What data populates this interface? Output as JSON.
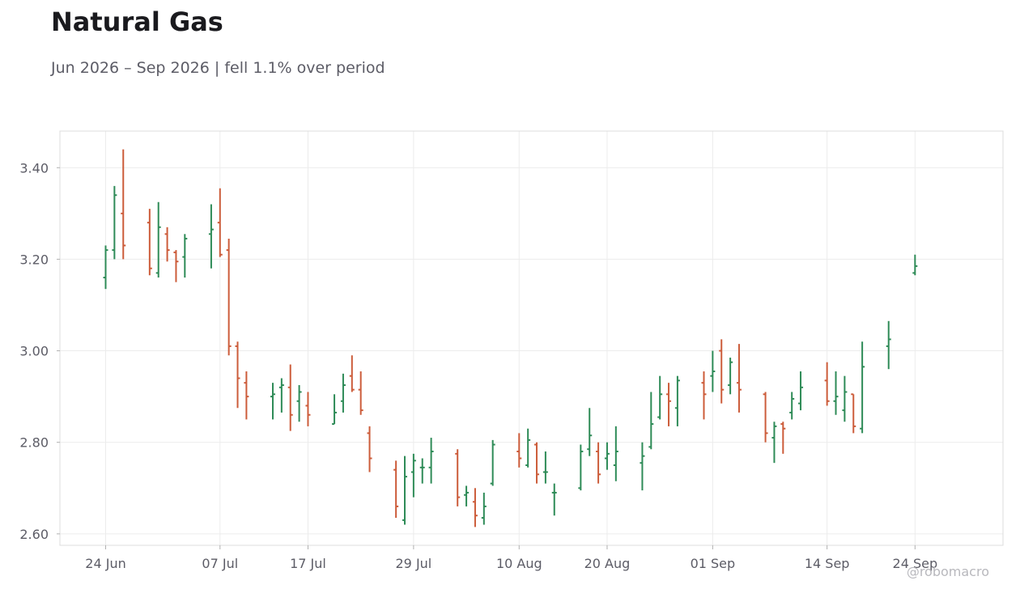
{
  "header": {
    "title": "Natural Gas",
    "subtitle": "Jun 2026 – Sep 2026 | fell 1.1% over period"
  },
  "watermark": "@robomacro",
  "colors": {
    "up": "#2e8b57",
    "down": "#cc5c3a",
    "grid": "#ececec",
    "frame": "#dcdcdc"
  },
  "chart_data": {
    "type": "ohlc",
    "title": "Natural Gas",
    "subtitle": "Jun 2026 – Sep 2026 | fell 1.1% over period",
    "x_range_days": [
      -5.2,
      102
    ],
    "ylim": [
      2.575,
      3.48
    ],
    "grid": true,
    "x_tick_labels": [
      "24 Jun",
      "07 Jul",
      "17 Jul",
      "29 Jul",
      "10 Aug",
      "20 Aug",
      "01 Sep",
      "14 Sep",
      "24 Sep"
    ],
    "x_tick_days": [
      0,
      13,
      23,
      35,
      47,
      57,
      69,
      82,
      92
    ],
    "y_ticks": [
      2.6,
      2.8,
      3.0,
      3.2,
      3.4
    ],
    "y_tick_labels": [
      "2.60",
      "2.80",
      "3.00",
      "3.20",
      "3.40"
    ],
    "bars": [
      {
        "date": "24 Jun",
        "o": 3.16,
        "h": 3.23,
        "l": 3.135,
        "c": 3.22
      },
      {
        "date": "25 Jun",
        "o": 3.22,
        "h": 3.36,
        "l": 3.2,
        "c": 3.34
      },
      {
        "date": "26 Jun",
        "o": 3.3,
        "h": 3.44,
        "l": 3.2,
        "c": 3.23
      },
      {
        "date": "29 Jun",
        "o": 3.28,
        "h": 3.31,
        "l": 3.165,
        "c": 3.18
      },
      {
        "date": "30 Jun",
        "o": 3.17,
        "h": 3.325,
        "l": 3.16,
        "c": 3.27
      },
      {
        "date": "01 Jul",
        "o": 3.255,
        "h": 3.27,
        "l": 3.195,
        "c": 3.22
      },
      {
        "date": "02 Jul",
        "o": 3.215,
        "h": 3.22,
        "l": 3.15,
        "c": 3.195
      },
      {
        "date": "03 Jul",
        "o": 3.205,
        "h": 3.255,
        "l": 3.16,
        "c": 3.245
      },
      {
        "date": "06 Jul",
        "o": 3.255,
        "h": 3.32,
        "l": 3.18,
        "c": 3.265
      },
      {
        "date": "07 Jul",
        "o": 3.28,
        "h": 3.355,
        "l": 3.205,
        "c": 3.21
      },
      {
        "date": "08 Jul",
        "o": 3.22,
        "h": 3.245,
        "l": 2.99,
        "c": 3.01
      },
      {
        "date": "09 Jul",
        "o": 3.01,
        "h": 3.02,
        "l": 2.875,
        "c": 2.94
      },
      {
        "date": "10 Jul",
        "o": 2.93,
        "h": 2.955,
        "l": 2.85,
        "c": 2.9
      },
      {
        "date": "13 Jul",
        "o": 2.9,
        "h": 2.93,
        "l": 2.85,
        "c": 2.905
      },
      {
        "date": "14 Jul",
        "o": 2.92,
        "h": 2.94,
        "l": 2.865,
        "c": 2.925
      },
      {
        "date": "15 Jul",
        "o": 2.92,
        "h": 2.97,
        "l": 2.825,
        "c": 2.86
      },
      {
        "date": "16 Jul",
        "o": 2.89,
        "h": 2.925,
        "l": 2.845,
        "c": 2.91
      },
      {
        "date": "17 Jul",
        "o": 2.88,
        "h": 2.91,
        "l": 2.835,
        "c": 2.86
      },
      {
        "date": "20 Jul",
        "o": 2.84,
        "h": 2.905,
        "l": 2.84,
        "c": 2.865
      },
      {
        "date": "21 Jul",
        "o": 2.89,
        "h": 2.95,
        "l": 2.865,
        "c": 2.925
      },
      {
        "date": "22 Jul",
        "o": 2.945,
        "h": 2.99,
        "l": 2.91,
        "c": 2.915
      },
      {
        "date": "23 Jul",
        "o": 2.915,
        "h": 2.955,
        "l": 2.86,
        "c": 2.87
      },
      {
        "date": "24 Jul",
        "o": 2.82,
        "h": 2.835,
        "l": 2.735,
        "c": 2.765
      },
      {
        "date": "27 Jul",
        "o": 2.74,
        "h": 2.76,
        "l": 2.635,
        "c": 2.66
      },
      {
        "date": "28 Jul",
        "o": 2.63,
        "h": 2.77,
        "l": 2.62,
        "c": 2.725
      },
      {
        "date": "29 Jul",
        "o": 2.735,
        "h": 2.775,
        "l": 2.68,
        "c": 2.76
      },
      {
        "date": "30 Jul",
        "o": 2.745,
        "h": 2.765,
        "l": 2.71,
        "c": 2.745
      },
      {
        "date": "31 Jul",
        "o": 2.745,
        "h": 2.81,
        "l": 2.71,
        "c": 2.78
      },
      {
        "date": "03 Aug",
        "o": 2.775,
        "h": 2.785,
        "l": 2.66,
        "c": 2.68
      },
      {
        "date": "04 Aug",
        "o": 2.685,
        "h": 2.705,
        "l": 2.66,
        "c": 2.69
      },
      {
        "date": "05 Aug",
        "o": 2.67,
        "h": 2.7,
        "l": 2.615,
        "c": 2.64
      },
      {
        "date": "06 Aug",
        "o": 2.635,
        "h": 2.69,
        "l": 2.62,
        "c": 2.66
      },
      {
        "date": "07 Aug",
        "o": 2.71,
        "h": 2.805,
        "l": 2.705,
        "c": 2.795
      },
      {
        "date": "10 Aug",
        "o": 2.78,
        "h": 2.82,
        "l": 2.745,
        "c": 2.765
      },
      {
        "date": "11 Aug",
        "o": 2.75,
        "h": 2.83,
        "l": 2.745,
        "c": 2.805
      },
      {
        "date": "12 Aug",
        "o": 2.795,
        "h": 2.8,
        "l": 2.71,
        "c": 2.73
      },
      {
        "date": "13 Aug",
        "o": 2.735,
        "h": 2.78,
        "l": 2.71,
        "c": 2.735
      },
      {
        "date": "14 Aug",
        "o": 2.69,
        "h": 2.71,
        "l": 2.64,
        "c": 2.69
      },
      {
        "date": "17 Aug",
        "o": 2.7,
        "h": 2.795,
        "l": 2.695,
        "c": 2.78
      },
      {
        "date": "18 Aug",
        "o": 2.785,
        "h": 2.875,
        "l": 2.77,
        "c": 2.815
      },
      {
        "date": "19 Aug",
        "o": 2.78,
        "h": 2.8,
        "l": 2.71,
        "c": 2.73
      },
      {
        "date": "20 Aug",
        "o": 2.765,
        "h": 2.8,
        "l": 2.74,
        "c": 2.775
      },
      {
        "date": "21 Aug",
        "o": 2.75,
        "h": 2.835,
        "l": 2.715,
        "c": 2.78
      },
      {
        "date": "24 Aug",
        "o": 2.755,
        "h": 2.8,
        "l": 2.695,
        "c": 2.77
      },
      {
        "date": "25 Aug",
        "o": 2.79,
        "h": 2.91,
        "l": 2.785,
        "c": 2.84
      },
      {
        "date": "26 Aug",
        "o": 2.855,
        "h": 2.945,
        "l": 2.85,
        "c": 2.905
      },
      {
        "date": "27 Aug",
        "o": 2.905,
        "h": 2.93,
        "l": 2.835,
        "c": 2.89
      },
      {
        "date": "28 Aug",
        "o": 2.875,
        "h": 2.945,
        "l": 2.835,
        "c": 2.935
      },
      {
        "date": "31 Aug",
        "o": 2.93,
        "h": 2.955,
        "l": 2.85,
        "c": 2.905
      },
      {
        "date": "01 Sep",
        "o": 2.945,
        "h": 3.0,
        "l": 2.91,
        "c": 2.955
      },
      {
        "date": "02 Sep",
        "o": 3.0,
        "h": 3.025,
        "l": 2.885,
        "c": 2.915
      },
      {
        "date": "03 Sep",
        "o": 2.925,
        "h": 2.985,
        "l": 2.905,
        "c": 2.975
      },
      {
        "date": "04 Sep",
        "o": 2.93,
        "h": 3.015,
        "l": 2.865,
        "c": 2.915
      },
      {
        "date": "07 Sep",
        "o": 2.905,
        "h": 2.91,
        "l": 2.8,
        "c": 2.82
      },
      {
        "date": "08 Sep",
        "o": 2.81,
        "h": 2.845,
        "l": 2.755,
        "c": 2.835
      },
      {
        "date": "09 Sep",
        "o": 2.84,
        "h": 2.845,
        "l": 2.775,
        "c": 2.83
      },
      {
        "date": "10 Sep",
        "o": 2.865,
        "h": 2.91,
        "l": 2.85,
        "c": 2.895
      },
      {
        "date": "11 Sep",
        "o": 2.885,
        "h": 2.955,
        "l": 2.87,
        "c": 2.92
      },
      {
        "date": "14 Sep",
        "o": 2.935,
        "h": 2.975,
        "l": 2.88,
        "c": 2.89
      },
      {
        "date": "15 Sep",
        "o": 2.89,
        "h": 2.955,
        "l": 2.86,
        "c": 2.9
      },
      {
        "date": "16 Sep",
        "o": 2.87,
        "h": 2.945,
        "l": 2.845,
        "c": 2.91
      },
      {
        "date": "17 Sep",
        "o": 2.905,
        "h": 2.905,
        "l": 2.82,
        "c": 2.835
      },
      {
        "date": "18 Sep",
        "o": 2.83,
        "h": 3.02,
        "l": 2.82,
        "c": 2.965
      },
      {
        "date": "21 Sep",
        "o": 3.01,
        "h": 3.065,
        "l": 2.96,
        "c": 3.025
      },
      {
        "date": "24 Sep",
        "o": 3.17,
        "h": 3.21,
        "l": 3.165,
        "c": 3.185
      }
    ]
  }
}
